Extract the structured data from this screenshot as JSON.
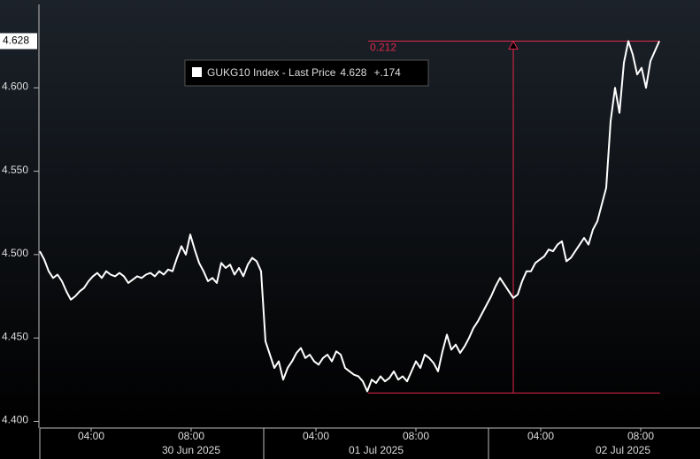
{
  "chart_data": {
    "type": "line",
    "series": [
      {
        "name": "GUKG10 Index - Last Price",
        "color": "#ffffff",
        "values": [
          4.502,
          4.497,
          4.49,
          4.486,
          4.488,
          4.484,
          4.478,
          4.473,
          4.475,
          4.478,
          4.48,
          4.484,
          4.487,
          4.489,
          4.486,
          4.49,
          4.488,
          4.487,
          4.489,
          4.487,
          4.483,
          4.485,
          4.487,
          4.486,
          4.488,
          4.489,
          4.487,
          4.49,
          4.488,
          4.491,
          4.49,
          4.498,
          4.505,
          4.5,
          4.512,
          4.503,
          4.495,
          4.49,
          4.484,
          4.486,
          4.483,
          4.495,
          4.492,
          4.494,
          4.488,
          4.492,
          4.487,
          4.494,
          4.498,
          4.496,
          4.49,
          4.448,
          4.44,
          4.432,
          4.436,
          4.425,
          4.432,
          4.436,
          4.441,
          4.444,
          4.438,
          4.44,
          4.436,
          4.434,
          4.438,
          4.44,
          4.436,
          4.442,
          4.44,
          4.432,
          4.43,
          4.428,
          4.427,
          4.424,
          4.418,
          4.425,
          4.423,
          4.427,
          4.424,
          4.426,
          4.43,
          4.425,
          4.427,
          4.424,
          4.43,
          4.436,
          4.432,
          4.44,
          4.438,
          4.435,
          4.43,
          4.442,
          4.452,
          4.443,
          4.446,
          4.441,
          4.445,
          4.45,
          4.456,
          4.46,
          4.465,
          4.47,
          4.475,
          4.481,
          4.486,
          4.482,
          4.478,
          4.474,
          4.476,
          4.484,
          4.49,
          4.49,
          4.495,
          4.497,
          4.499,
          4.503,
          4.502,
          4.506,
          4.508,
          4.496,
          4.498,
          4.502,
          4.506,
          4.51,
          4.506,
          4.515,
          4.52,
          4.53,
          4.54,
          4.58,
          4.6,
          4.585,
          4.615,
          4.628,
          4.62,
          4.608,
          4.612,
          4.6,
          4.616,
          4.622,
          4.628
        ]
      }
    ],
    "change_label": "+.174",
    "annotation": {
      "label": "0.212",
      "high": 4.628,
      "low": 4.417,
      "color": "#e0284a"
    },
    "xlim": [
      0,
      149.2
    ],
    "xticks": [
      {
        "value": 11.6,
        "label": "04:00"
      },
      {
        "value": 34.2,
        "label": "08:00"
      },
      {
        "value": 62.4,
        "label": "04:00"
      },
      {
        "value": 85,
        "label": "08:00"
      },
      {
        "value": 113.2,
        "label": "04:00"
      },
      {
        "value": 135.8,
        "label": "08:00"
      }
    ],
    "day_ticks": [
      {
        "value": 34.2,
        "label": "30 Jun 2025"
      },
      {
        "value": 76,
        "label": "01 Jul 2025"
      },
      {
        "value": 131.8,
        "label": "02 Jul 2025"
      }
    ],
    "day_separators": [
      50.6,
      101.4
    ],
    "ylim": [
      4.396,
      4.65
    ],
    "yticks": [
      {
        "value": 4.4,
        "label": "4.400"
      },
      {
        "value": 4.45,
        "label": "4.450"
      },
      {
        "value": 4.5,
        "label": "4.500"
      },
      {
        "value": 4.55,
        "label": "4.550"
      },
      {
        "value": 4.6,
        "label": "4.600"
      }
    ],
    "grid": false
  }
}
